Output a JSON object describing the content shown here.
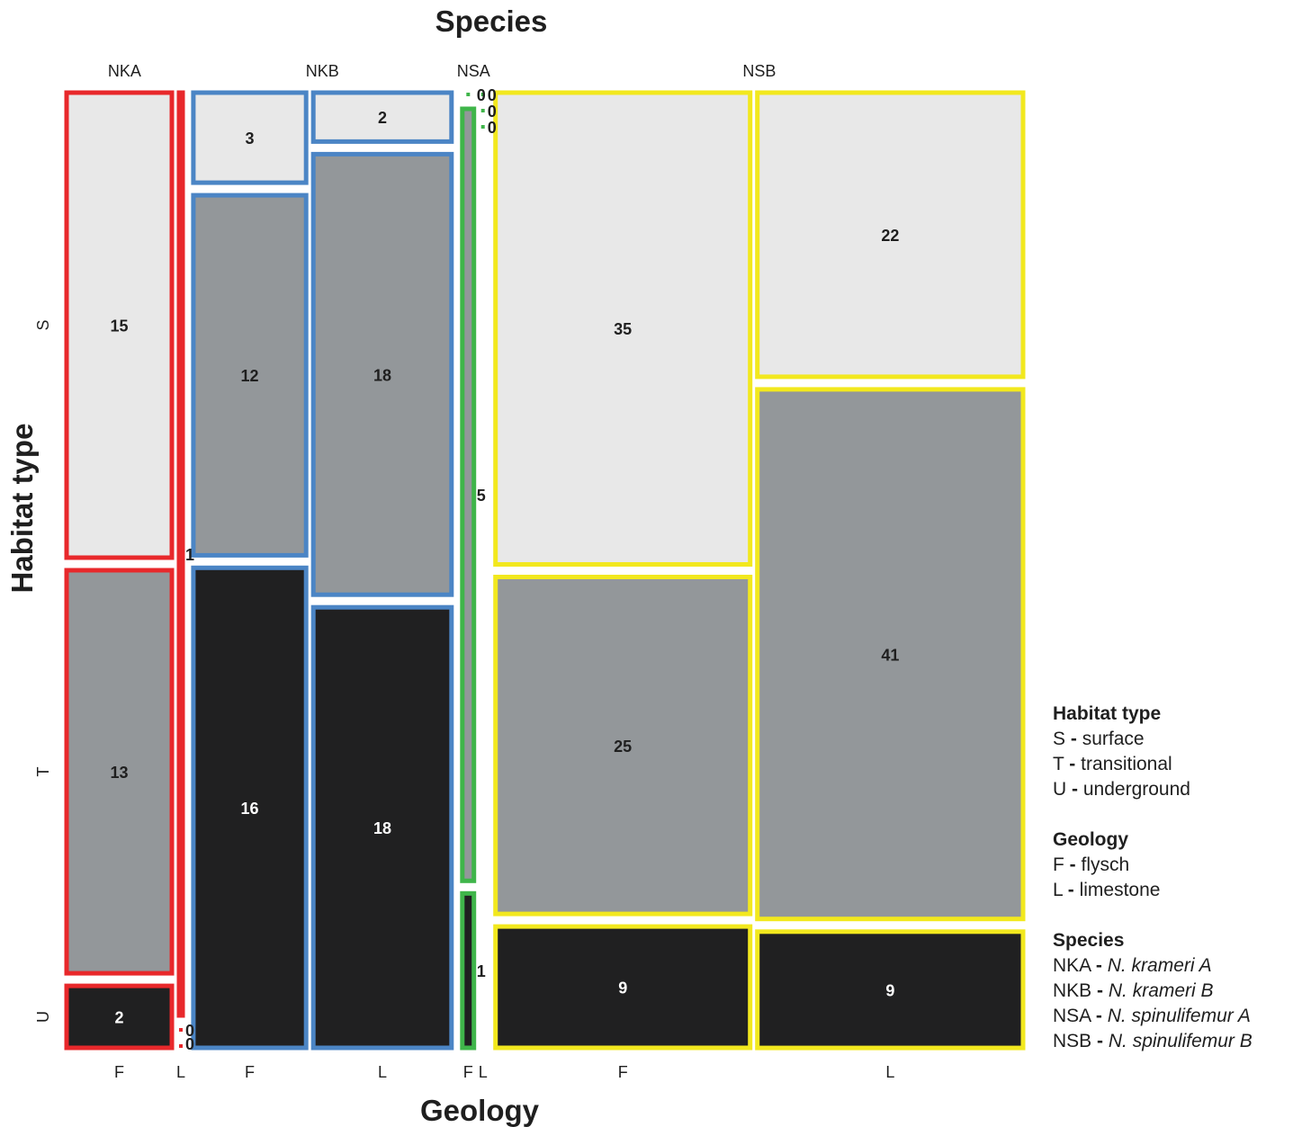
{
  "chart_data": {
    "type": "mosaic",
    "title": "Species",
    "xlabel": "Geology",
    "ylabel": "Habitat type",
    "species": [
      "NKA",
      "NKB",
      "NSA",
      "NSB"
    ],
    "geology": [
      "F",
      "L"
    ],
    "habitat": [
      "S",
      "T",
      "U"
    ],
    "colors": {
      "NKA": "#e8282b",
      "NKB": "#4b85c5",
      "NSA": "#3fb54a",
      "NSB": "#f2e81e"
    },
    "fills": {
      "S": "#e8e8e8",
      "T": "#93979a",
      "U": "#202021"
    },
    "counts": {
      "NKA": {
        "F": {
          "S": 15,
          "T": 13,
          "U": 2
        },
        "L": {
          "S": 1,
          "T": 0,
          "U": 0
        }
      },
      "NKB": {
        "F": {
          "S": 3,
          "T": 12,
          "U": 16
        },
        "L": {
          "S": 2,
          "T": 18,
          "U": 18
        }
      },
      "NSA": {
        "F": {
          "S": 0,
          "T": 5,
          "U": 1
        },
        "L": {
          "S": 0,
          "T": 0,
          "U": 0
        }
      },
      "NSB": {
        "F": {
          "S": 35,
          "T": 25,
          "U": 9
        },
        "L": {
          "S": 22,
          "T": 41,
          "U": 9
        }
      }
    }
  },
  "legend": {
    "habitat": {
      "title": "Habitat type",
      "items": [
        {
          "code": "S",
          "sep": "-",
          "name": "surface"
        },
        {
          "code": "T",
          "sep": "-",
          "name": "transitional"
        },
        {
          "code": "U",
          "sep": "-",
          "name": "underground"
        }
      ]
    },
    "geology": {
      "title": "Geology",
      "items": [
        {
          "code": "F",
          "sep": "-",
          "name": "flysch"
        },
        {
          "code": "L",
          "sep": "-",
          "name": "limestone"
        }
      ]
    },
    "species": {
      "title": "Species",
      "items": [
        {
          "code": "NKA",
          "sep": "-",
          "name": "N. krameri A"
        },
        {
          "code": "NKB",
          "sep": "-",
          "name": "N. krameri B"
        },
        {
          "code": "NSA",
          "sep": "-",
          "name": "N. spinulifemur A"
        },
        {
          "code": "NSB",
          "sep": "-",
          "name": "N. spinulifemur B"
        }
      ]
    }
  }
}
